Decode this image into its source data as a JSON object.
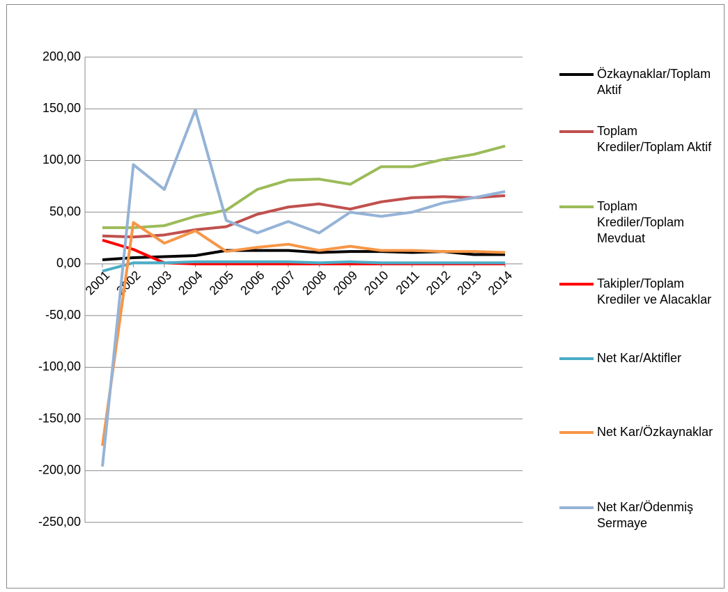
{
  "chart_data": {
    "type": "line",
    "categories": [
      "2001",
      "2002",
      "2003",
      "2004",
      "2005",
      "2006",
      "2007",
      "2008",
      "2009",
      "2010",
      "2011",
      "2012",
      "2013",
      "2014"
    ],
    "series": [
      {
        "name": "Özkaynaklar/Toplam Aktif",
        "color": "#000000",
        "values": [
          4,
          6,
          7,
          8,
          13,
          13,
          13,
          11,
          12,
          12,
          11,
          12,
          9,
          9
        ]
      },
      {
        "name": "Toplam Krediler/Toplam Aktif",
        "color": "#c0504d",
        "values": [
          27,
          26,
          28,
          33,
          36,
          48,
          55,
          58,
          53,
          60,
          64,
          65,
          64,
          66
        ]
      },
      {
        "name": "Toplam Krediler/Toplam Mevduat",
        "color": "#9bbb59",
        "values": [
          35,
          35,
          37,
          46,
          52,
          72,
          81,
          82,
          77,
          94,
          94,
          101,
          106,
          114
        ]
      },
      {
        "name": "Takipler/Toplam Krediler ve Alacaklar",
        "color": "#ff0000",
        "values": [
          23,
          14,
          1,
          0,
          0,
          0,
          0,
          0,
          0,
          0,
          0,
          0,
          0,
          0
        ]
      },
      {
        "name": "Net Kar/Aktifler",
        "color": "#4bacc6",
        "values": [
          -7,
          1,
          1,
          2,
          2,
          2,
          2,
          1,
          2,
          1,
          1,
          1,
          1,
          1
        ]
      },
      {
        "name": "Net Kar/Özkaynaklar",
        "color": "#f79646",
        "values": [
          -176,
          40,
          20,
          32,
          12,
          16,
          19,
          13,
          17,
          13,
          13,
          12,
          12,
          11
        ]
      },
      {
        "name": "Net Kar/Ödenmiş Sermaye",
        "color": "#95b3d7",
        "values": [
          -196,
          96,
          72,
          149,
          42,
          30,
          41,
          30,
          50,
          46,
          50,
          59,
          64,
          70
        ]
      }
    ],
    "ylim": [
      -250,
      200
    ],
    "yticks": [
      {
        "value": -250,
        "label": "-250,00"
      },
      {
        "value": -200,
        "label": "-200,00"
      },
      {
        "value": -150,
        "label": "-150,00"
      },
      {
        "value": -100,
        "label": "-100,00"
      },
      {
        "value": -50,
        "label": "-50,00"
      },
      {
        "value": 0,
        "label": "0,00"
      },
      {
        "value": 50,
        "label": "50,00"
      },
      {
        "value": 100,
        "label": "100,00"
      },
      {
        "value": 150,
        "label": "150,00"
      },
      {
        "value": 200,
        "label": "200,00"
      }
    ],
    "grid": true,
    "legend": "right"
  }
}
